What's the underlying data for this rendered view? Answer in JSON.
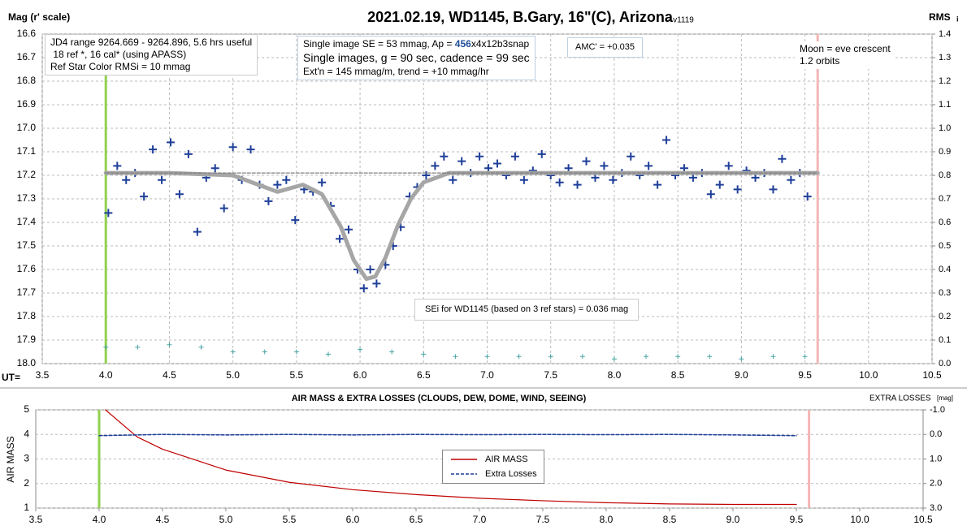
{
  "chart_data": [
    {
      "type": "scatter",
      "title": "2021.02.19, WD1145, B.Gary, 16\"(C), Arizona",
      "subtitle": "- v1119",
      "y_label": "Mag (r' scale)",
      "y2_label": "RMS",
      "y2_label_sub": "i",
      "x_label": "UT=",
      "xlim": [
        3.5,
        10.5
      ],
      "xticks": [
        3.5,
        {
          "value": 4,
          "label": "4.0"
        },
        4.5,
        {
          "value": 5,
          "label": "5.0"
        },
        5.5,
        {
          "value": 6,
          "label": "6.0"
        },
        6.5,
        {
          "value": 7,
          "label": "7.0"
        },
        7.5,
        {
          "value": 8,
          "label": "8.0"
        },
        8.5,
        {
          "value": 9,
          "label": "9.0"
        },
        9.5,
        {
          "value": 10,
          "label": "10.0"
        },
        10.5
      ],
      "ylim": [
        16.6,
        18.0
      ],
      "y_inverted": true,
      "yticks": [
        16.6,
        16.7,
        16.8,
        16.9,
        {
          "value": 17,
          "label": "17.0"
        },
        17.1,
        17.2,
        17.3,
        17.4,
        17.5,
        17.6,
        17.7,
        17.8,
        17.9,
        {
          "value": 18,
          "label": "18.0"
        }
      ],
      "y2lim": [
        0,
        1.4
      ],
      "y2ticks": [
        1.4,
        1.3,
        1.2,
        1.1,
        {
          "value": 1,
          "label": "1.0"
        },
        0.9,
        0.8,
        0.7,
        0.6,
        0.5,
        0.4,
        0.3,
        0.2,
        0.1,
        {
          "value": 0,
          "label": "0.0"
        }
      ],
      "grid": "both",
      "series": [
        {
          "type": "scatter",
          "color": "#1f3f99",
          "x": [
            4.02,
            4.09,
            4.16,
            4.23,
            4.3,
            4.37,
            4.44,
            4.51,
            4.58,
            4.65,
            4.72,
            4.79,
            4.86,
            4.93,
            5.0,
            5.07,
            5.14,
            5.21,
            5.28,
            5.35,
            5.42,
            5.49,
            5.56,
            5.63,
            5.7,
            5.77,
            5.84,
            5.91,
            5.98,
            6.03,
            6.08,
            6.13,
            6.2,
            6.26,
            6.32,
            6.39,
            6.45,
            6.52,
            6.59,
            6.66,
            6.73,
            6.8,
            6.87,
            6.94,
            7.01,
            7.08,
            7.15,
            7.22,
            7.29,
            7.36,
            7.43,
            7.5,
            7.57,
            7.64,
            7.71,
            7.78,
            7.85,
            7.92,
            7.99,
            8.06,
            8.13,
            8.2,
            8.27,
            8.34,
            8.41,
            8.48,
            8.55,
            8.62,
            8.69,
            8.76,
            8.83,
            8.9,
            8.97,
            9.04,
            9.11,
            9.18,
            9.25,
            9.32,
            9.39,
            9.46,
            9.52
          ],
          "values": [
            17.36,
            17.16,
            17.22,
            17.19,
            17.29,
            17.09,
            17.22,
            17.06,
            17.28,
            17.11,
            17.44,
            17.21,
            17.17,
            17.34,
            17.08,
            17.22,
            17.09,
            17.24,
            17.31,
            17.24,
            17.22,
            17.39,
            17.26,
            17.27,
            17.23,
            17.33,
            17.47,
            17.43,
            17.6,
            17.68,
            17.6,
            17.66,
            17.58,
            17.5,
            17.42,
            17.29,
            17.25,
            17.2,
            17.16,
            17.12,
            17.22,
            17.14,
            17.19,
            17.12,
            17.17,
            17.15,
            17.2,
            17.12,
            17.22,
            17.18,
            17.11,
            17.2,
            17.23,
            17.17,
            17.24,
            17.14,
            17.21,
            17.16,
            17.22,
            17.19,
            17.12,
            17.2,
            17.16,
            17.24,
            17.05,
            17.2,
            17.17,
            17.21,
            17.19,
            17.28,
            17.24,
            17.16,
            17.26,
            17.18,
            17.21,
            17.19,
            17.26,
            17.13,
            17.22,
            17.19,
            17.29
          ]
        },
        {
          "type": "line",
          "color": "#a6a6a6",
          "x": [
            4.0,
            4.5,
            5.0,
            5.2,
            5.35,
            5.55,
            5.7,
            5.85,
            5.95,
            6.05,
            6.12,
            6.2,
            6.3,
            6.4,
            6.5,
            6.7,
            7.0,
            9.6
          ],
          "values": [
            17.19,
            17.19,
            17.2,
            17.24,
            17.27,
            17.24,
            17.28,
            17.42,
            17.56,
            17.64,
            17.63,
            17.55,
            17.41,
            17.3,
            17.23,
            17.19,
            17.19,
            17.19
          ]
        },
        {
          "type": "line",
          "color": "#7f7f7f",
          "dashed": true,
          "x": [
            4.0,
            9.6
          ],
          "values": [
            17.19,
            17.19
          ]
        },
        {
          "type": "scatter",
          "axis": "y2",
          "color": "#4aa3a3",
          "x": [
            4.0,
            4.25,
            4.5,
            4.75,
            5.0,
            5.25,
            5.5,
            5.75,
            6.0,
            6.25,
            6.5,
            6.75,
            7.0,
            7.25,
            7.5,
            7.75,
            8.0,
            8.25,
            8.5,
            8.75,
            9.0,
            9.25,
            9.5
          ],
          "values": [
            0.07,
            0.07,
            0.08,
            0.07,
            0.05,
            0.05,
            0.05,
            0.04,
            0.06,
            0.05,
            0.04,
            0.03,
            0.03,
            0.03,
            0.03,
            0.03,
            0.02,
            0.03,
            0.03,
            0.03,
            0.02,
            0.03,
            0.03
          ]
        }
      ],
      "vlines": [
        {
          "x": 4.0,
          "color": "#92d050"
        },
        {
          "x": 9.6,
          "color": "#f4b6b6"
        }
      ],
      "annotations": [
        {
          "lines": [
            "JD4 range 9264.669 - 9264.896, 5.6 hrs useful",
            " 18 ref *, 16 cal* (using APASS)",
            "Ref Star Color RMSi = 10 mmag"
          ]
        },
        {
          "lines": [
            [
              "Single image SE = 53 mmag, Ap = ",
              "456",
              "x4x12b3snap"
            ],
            "Single images, g = 90 sec, cadence = 99 sec",
            "Ext'n = 145 mmag/m, trend = +10 mmag/hr"
          ]
        },
        {
          "lines": [
            "AMC' = +0.035"
          ]
        },
        {
          "lines": [
            "Moon = eve crescent",
            "1.2 orbits"
          ]
        },
        {
          "lines": [
            "SEi for WD1145 (based on 3 ref stars) = 0.036 mag"
          ]
        }
      ]
    },
    {
      "type": "line",
      "title": "AIR MASS & EXTRA LOSSES (CLOUDS, DEW, DOME, WIND, SEEING)",
      "y_label": "AIR MASS",
      "y2_label": "EXTRA LOSSES",
      "y2_label_unit": "[mag]",
      "xlim": [
        3.5,
        10.5
      ],
      "xticks": [
        3.5,
        {
          "value": 4,
          "label": "4.0"
        },
        4.5,
        {
          "value": 5,
          "label": "5.0"
        },
        5.5,
        {
          "value": 6,
          "label": "6.0"
        },
        6.5,
        {
          "value": 7,
          "label": "7.0"
        },
        7.5,
        {
          "value": 8,
          "label": "8.0"
        },
        8.5,
        {
          "value": 9,
          "label": "9.0"
        },
        9.5,
        {
          "value": 10,
          "label": "10.0"
        },
        10.5
      ],
      "ylim": [
        1,
        5
      ],
      "yticks": [
        1,
        2,
        3,
        4,
        5
      ],
      "y2lim": [
        -1,
        3
      ],
      "y2_inverted": true,
      "y2ticks": [
        {
          "value": -1,
          "label": "-1.0"
        },
        {
          "value": 0,
          "label": "0.0"
        },
        {
          "value": 1,
          "label": "1.0"
        },
        {
          "value": 2,
          "label": "2.0"
        },
        {
          "value": 3,
          "label": "3.0"
        }
      ],
      "grid": "y",
      "legend": "center",
      "series": [
        {
          "name": "AIR MASS",
          "color": "#c00000",
          "x": [
            4.05,
            4.3,
            4.5,
            5.0,
            5.5,
            6.0,
            6.5,
            7.0,
            7.5,
            8.0,
            8.5,
            9.0,
            9.5
          ],
          "values": [
            5.0,
            3.9,
            3.4,
            2.55,
            2.05,
            1.75,
            1.55,
            1.4,
            1.3,
            1.22,
            1.17,
            1.15,
            1.15
          ]
        },
        {
          "name": "Extra Losses",
          "axis": "y2",
          "color": "#1f3f99",
          "dashed": true,
          "x": [
            4.0,
            4.5,
            5.0,
            5.5,
            6.0,
            6.5,
            7.0,
            7.5,
            8.0,
            8.5,
            9.0,
            9.5
          ],
          "values": [
            0.05,
            0.0,
            0.02,
            0.0,
            0.02,
            0.0,
            0.01,
            0.0,
            0.01,
            0.0,
            0.02,
            0.05
          ]
        }
      ],
      "vlines": [
        {
          "x": 4.0,
          "color": "#92d050"
        },
        {
          "x": 9.6,
          "color": "#f4b6b6"
        }
      ]
    }
  ]
}
